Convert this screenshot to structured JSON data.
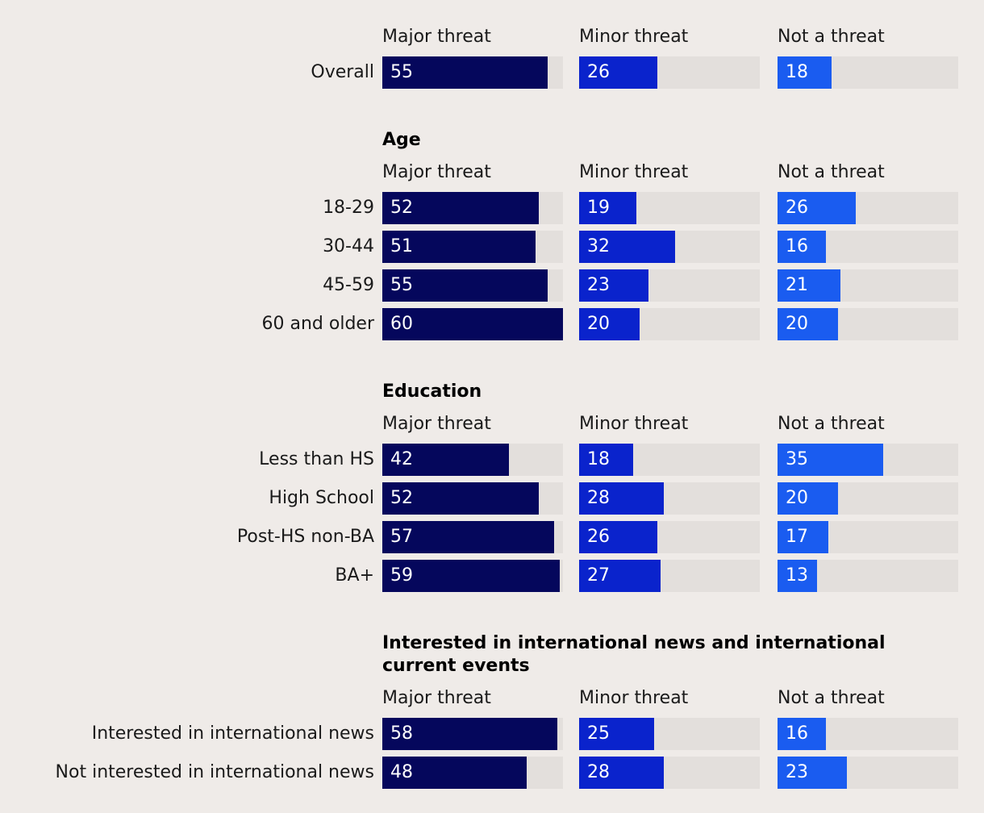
{
  "chart_data": {
    "type": "bar",
    "columns": [
      "Major threat",
      "Minor threat",
      "Not a threat"
    ],
    "max_value": 60,
    "colors": [
      "#05075c",
      "#0a23cc",
      "#1a5cf0"
    ],
    "track_color": "#e3dfdc",
    "sections": [
      {
        "title": "",
        "rows": [
          {
            "label": "Overall",
            "values": [
              55,
              26,
              18
            ]
          }
        ]
      },
      {
        "title": "Age",
        "rows": [
          {
            "label": "18-29",
            "values": [
              52,
              19,
              26
            ]
          },
          {
            "label": "30-44",
            "values": [
              51,
              32,
              16
            ]
          },
          {
            "label": "45-59",
            "values": [
              55,
              23,
              21
            ]
          },
          {
            "label": "60 and older",
            "values": [
              60,
              20,
              20
            ]
          }
        ]
      },
      {
        "title": "Education",
        "rows": [
          {
            "label": "Less than HS",
            "values": [
              42,
              18,
              35
            ]
          },
          {
            "label": "High School",
            "values": [
              52,
              28,
              20
            ]
          },
          {
            "label": "Post-HS non-BA",
            "values": [
              57,
              26,
              17
            ]
          },
          {
            "label": "BA+",
            "values": [
              59,
              27,
              13
            ]
          }
        ]
      },
      {
        "title": "Interested in international news and international current events",
        "rows": [
          {
            "label": "Interested in international news",
            "values": [
              58,
              25,
              16
            ]
          },
          {
            "label": "Not interested in international news",
            "values": [
              48,
              28,
              23
            ]
          }
        ]
      }
    ]
  }
}
